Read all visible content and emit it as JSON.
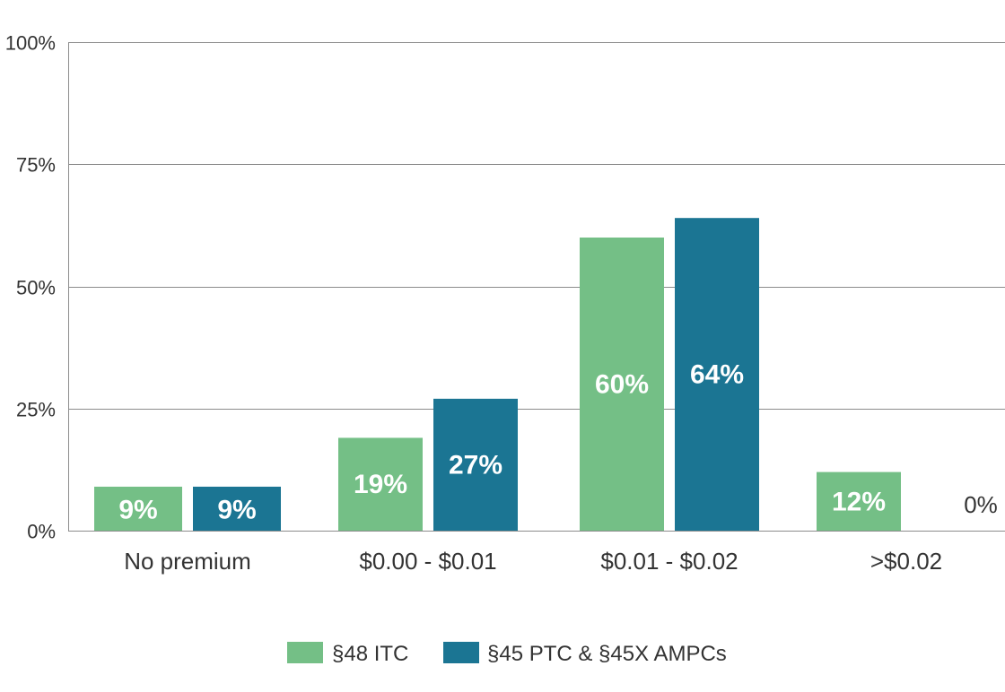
{
  "chart_data": {
    "type": "bar",
    "title": "",
    "xlabel": "",
    "ylabel": "",
    "ylim": [
      0,
      100
    ],
    "yticks": [
      0,
      25,
      50,
      75,
      100
    ],
    "ytick_labels": [
      "0%",
      "25%",
      "50%",
      "75%",
      "100%"
    ],
    "grid": true,
    "legend_position": "bottom",
    "categories": [
      "No premium",
      "$0.00 - $0.01",
      "$0.01 - $0.02",
      ">$0.02"
    ],
    "series": [
      {
        "name": "§48 ITC",
        "color": "#74bf86",
        "values": [
          9,
          19,
          60,
          12
        ],
        "labels": [
          "9%",
          "19%",
          "60%",
          "12%"
        ]
      },
      {
        "name": "§45 PTC & §45X AMPCs",
        "color": "#1b7593",
        "values": [
          9,
          27,
          64,
          0
        ],
        "labels": [
          "9%",
          "27%",
          "64%",
          "0%"
        ]
      }
    ]
  }
}
